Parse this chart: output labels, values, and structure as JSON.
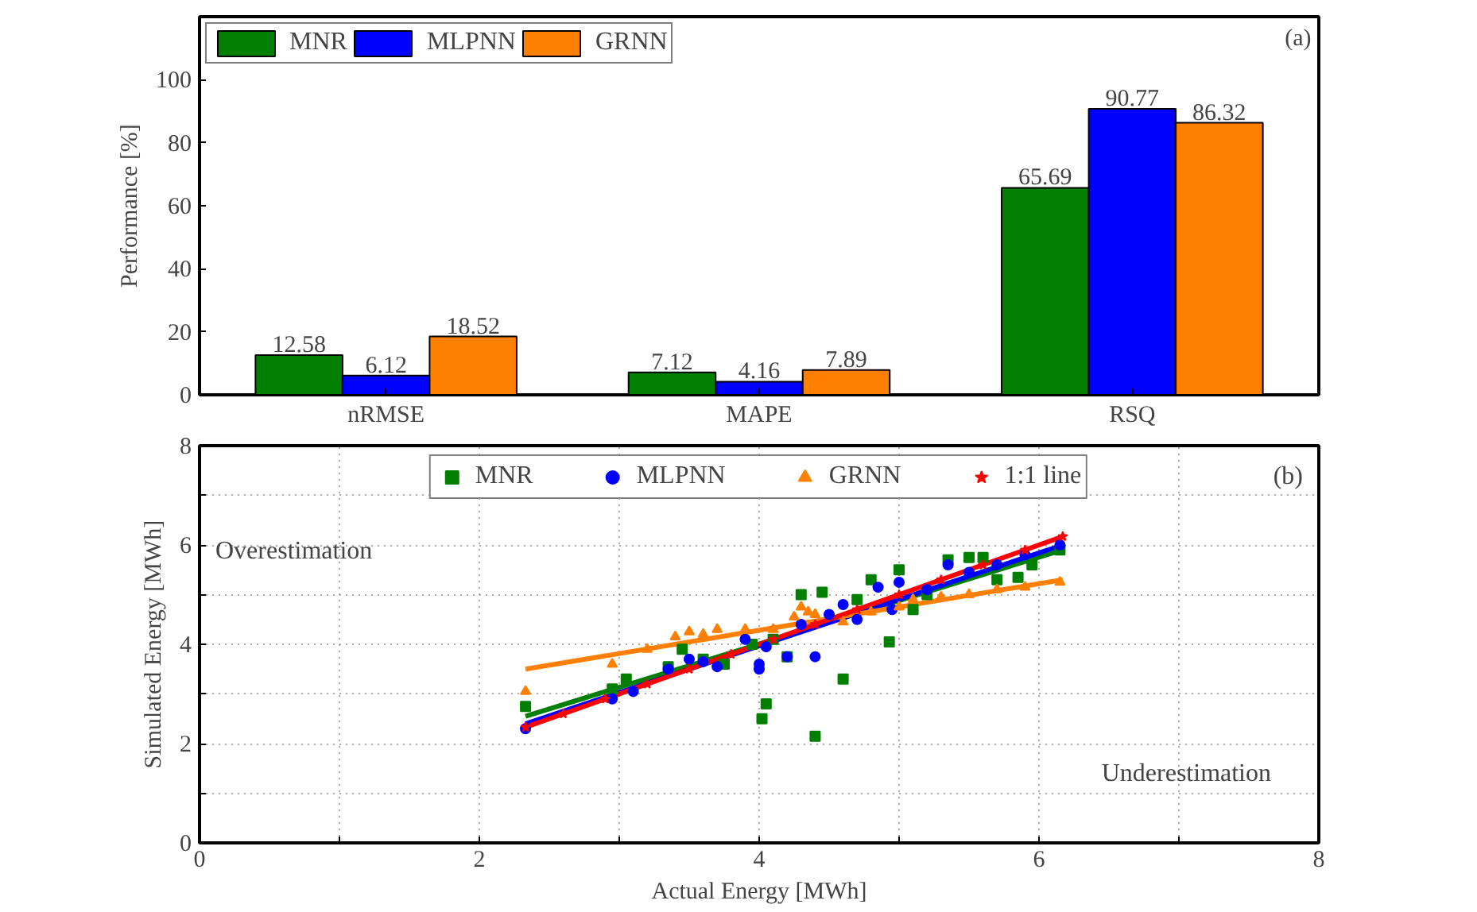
{
  "chart_data": [
    {
      "type": "bar",
      "ylabel": "Performance [%]",
      "categories": [
        "nRMSE",
        "MAPE",
        "RSQ"
      ],
      "series": [
        {
          "name": "MNR",
          "color": "#007f00",
          "values": [
            12.58,
            7.12,
            65.69
          ]
        },
        {
          "name": "MLPNN",
          "color": "#0000ff",
          "values": [
            6.12,
            4.16,
            90.77
          ]
        },
        {
          "name": "GRNN",
          "color": "#ff7f00",
          "values": [
            18.52,
            7.89,
            86.32
          ]
        }
      ],
      "data_labels": true,
      "ylim": [
        0,
        120
      ],
      "yticks": [
        0,
        20,
        40,
        60,
        80,
        100
      ],
      "grid": false,
      "legend": "top left",
      "annotations": [
        "(a)"
      ]
    },
    {
      "type": "scatter",
      "xlabel": "Actual Energy [MWh]",
      "ylabel": "Simulated Energy [MWh]",
      "series": [
        {
          "name": "MNR",
          "color": "#007f00",
          "marker": "square",
          "x": [
            2.33,
            2.95,
            3.05,
            3.35,
            3.45,
            3.6,
            3.75,
            3.95,
            4.02,
            4.05,
            4.1,
            4.2,
            4.3,
            4.4,
            4.45,
            4.6,
            4.7,
            4.8,
            4.93,
            5.0,
            5.1,
            5.2,
            5.35,
            5.5,
            5.6,
            5.7,
            5.85,
            5.95,
            6.15
          ],
          "values": [
            2.75,
            3.1,
            3.3,
            3.55,
            3.9,
            3.7,
            3.6,
            4.0,
            2.5,
            2.8,
            4.1,
            3.75,
            5.0,
            2.15,
            5.05,
            3.3,
            4.9,
            5.3,
            4.05,
            5.5,
            4.7,
            5.0,
            5.7,
            5.75,
            5.75,
            5.3,
            5.35,
            5.6,
            5.9
          ]
        },
        {
          "name": "MLPNN",
          "color": "#0000ff",
          "marker": "circle",
          "x": [
            2.33,
            2.95,
            3.1,
            3.35,
            3.5,
            3.6,
            3.7,
            3.9,
            4.0,
            4.0,
            4.05,
            4.2,
            4.3,
            4.4,
            4.5,
            4.6,
            4.7,
            4.85,
            4.95,
            5.0,
            5.2,
            5.35,
            5.5,
            5.7,
            5.9,
            6.15
          ],
          "values": [
            2.3,
            2.9,
            3.05,
            3.5,
            3.7,
            3.65,
            3.55,
            4.1,
            3.5,
            3.6,
            3.95,
            3.75,
            4.4,
            3.75,
            4.6,
            4.8,
            4.5,
            5.15,
            4.7,
            5.25,
            5.1,
            5.6,
            5.45,
            5.6,
            5.8,
            6.0
          ]
        },
        {
          "name": "GRNN",
          "color": "#ff7f00",
          "marker": "triangle",
          "x": [
            2.33,
            2.95,
            3.2,
            3.4,
            3.5,
            3.6,
            3.7,
            3.9,
            4.1,
            4.25,
            4.3,
            4.35,
            4.4,
            4.6,
            4.8,
            5.0,
            5.1,
            5.3,
            5.5,
            5.7,
            5.9,
            6.15
          ],
          "values": [
            3.05,
            3.6,
            3.9,
            4.15,
            4.25,
            4.2,
            4.3,
            4.3,
            4.3,
            4.55,
            4.75,
            4.65,
            4.6,
            4.45,
            4.65,
            4.75,
            4.9,
            4.95,
            5.0,
            5.1,
            5.15,
            5.25
          ]
        },
        {
          "name": "1:1 line",
          "color": "#ff0000",
          "marker": "star",
          "x": [
            2.33,
            2.6,
            2.9,
            3.2,
            3.5,
            3.8,
            4.1,
            4.4,
            4.7,
            5.0,
            5.3,
            5.6,
            5.9,
            6.17
          ],
          "values": [
            2.33,
            2.6,
            2.9,
            3.2,
            3.5,
            3.8,
            4.1,
            4.4,
            4.7,
            5.0,
            5.3,
            5.6,
            5.9,
            6.17
          ]
        },
        {
          "type": "line",
          "color": "#007f00",
          "x": [
            2.33,
            6.17
          ],
          "values": [
            2.55,
            5.9
          ]
        },
        {
          "type": "line",
          "color": "#0000ff",
          "x": [
            2.33,
            6.17
          ],
          "values": [
            2.4,
            6.0
          ]
        },
        {
          "type": "line",
          "color": "#ff7f00",
          "x": [
            2.33,
            6.17
          ],
          "values": [
            3.5,
            5.3
          ]
        },
        {
          "type": "line",
          "color": "#ff0000",
          "x": [
            2.33,
            6.17
          ],
          "values": [
            2.33,
            6.17
          ]
        }
      ],
      "xlim": [
        0,
        8
      ],
      "ylim": [
        0,
        8
      ],
      "xticks": [
        0,
        {
          "value": 1,
          "label": null
        },
        2,
        {
          "value": 3,
          "label": null
        },
        4,
        {
          "value": 5,
          "label": null
        },
        6,
        {
          "value": 7,
          "label": null
        },
        8
      ],
      "yticks": [
        0,
        {
          "value": 1,
          "label": null
        },
        2,
        {
          "value": 3,
          "label": null
        },
        4,
        {
          "value": 5,
          "label": null
        },
        6,
        {
          "value": 7,
          "label": null
        },
        8
      ],
      "grid": true,
      "legend": "top",
      "line_style": "solid",
      "annotations": [
        "(b)",
        "Overestimation",
        "Underestimation"
      ]
    }
  ]
}
